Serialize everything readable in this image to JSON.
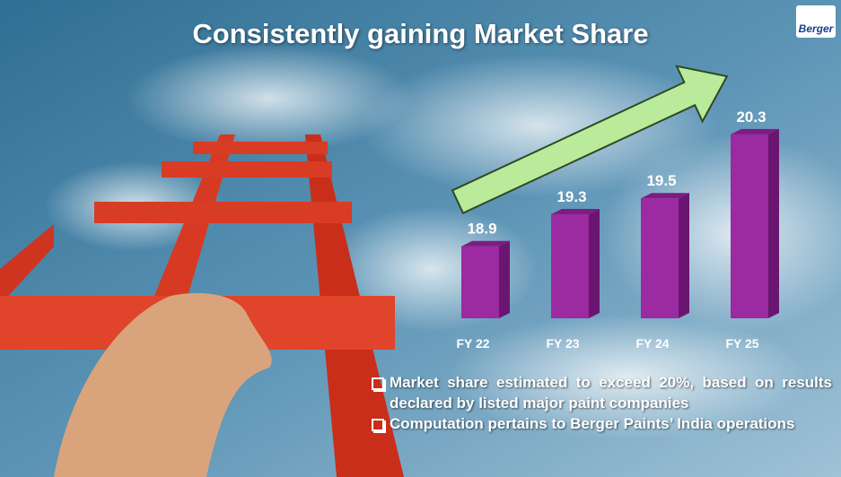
{
  "title": "Consistently gaining Market Share",
  "logo": "Berger",
  "chart_data": {
    "type": "bar",
    "categories": [
      "FY 22",
      "FY 23",
      "FY 24",
      "FY 25"
    ],
    "values": [
      18.9,
      19.3,
      19.5,
      20.3
    ],
    "color": "#9c2aa0",
    "ylim": [
      18,
      20.5
    ]
  },
  "notes": [
    "Market share estimated to exceed 20%, based on results declared by listed major paint companies",
    "Computation pertains to Berger Paints’ India operations"
  ]
}
